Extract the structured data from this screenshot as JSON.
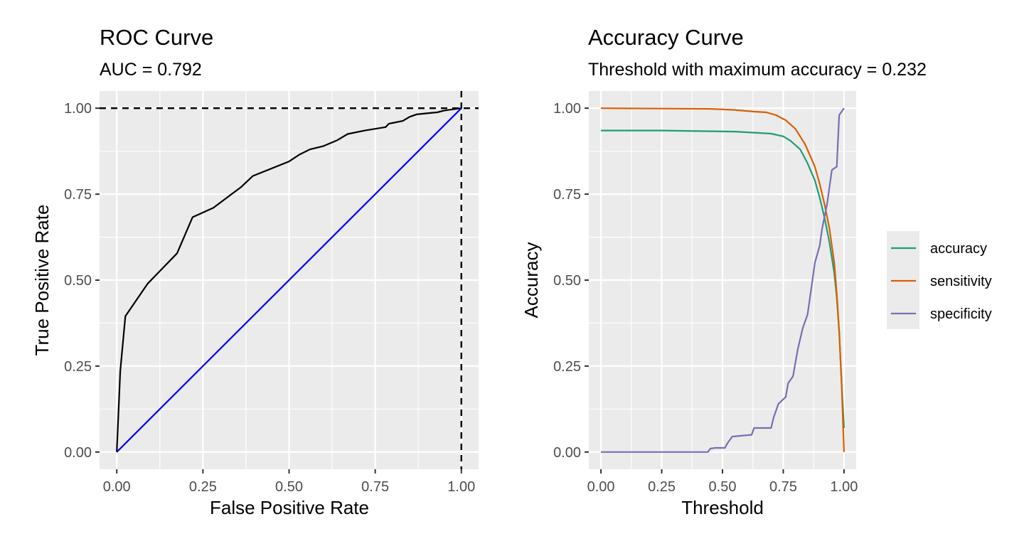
{
  "chart_data": [
    {
      "type": "line",
      "title": "ROC Curve",
      "subtitle": "AUC = 0.792",
      "xlabel": "False Positive Rate",
      "ylabel": "True Positive Rate",
      "xlim": [
        -0.05,
        1.05
      ],
      "ylim": [
        -0.05,
        1.05
      ],
      "xticks": [
        "0.00",
        "0.25",
        "0.50",
        "0.75",
        "1.00"
      ],
      "yticks": [
        "0.00",
        "0.25",
        "0.50",
        "0.75",
        "1.00"
      ],
      "grid": true,
      "series": [
        {
          "color": "#000000",
          "x": [
            0.0,
            0.01,
            0.025,
            0.09,
            0.175,
            0.22,
            0.28,
            0.36,
            0.395,
            0.5,
            0.53,
            0.56,
            0.6,
            0.64,
            0.67,
            0.72,
            0.78,
            0.79,
            0.8,
            0.83,
            0.85,
            0.87,
            0.9,
            0.93,
            0.95,
            0.97,
            1.0
          ],
          "y": [
            0.0,
            0.235,
            0.395,
            0.49,
            0.578,
            0.683,
            0.71,
            0.77,
            0.803,
            0.845,
            0.865,
            0.88,
            0.89,
            0.907,
            0.925,
            0.935,
            0.945,
            0.955,
            0.957,
            0.963,
            0.975,
            0.982,
            0.985,
            0.988,
            0.993,
            0.996,
            1.0
          ]
        },
        {
          "color": "#0000ff",
          "x": [
            0.0,
            1.0
          ],
          "y": [
            0.0,
            1.0
          ]
        }
      ],
      "reference_lines": [
        {
          "orientation": "horizontal",
          "value": 1.0,
          "style": "dashed",
          "color": "#000000"
        },
        {
          "orientation": "vertical",
          "value": 1.0,
          "style": "dashed",
          "color": "#000000"
        }
      ]
    },
    {
      "type": "line",
      "title": "Accuracy Curve",
      "subtitle": "Threshold with maximum accuracy = 0.232",
      "xlabel": "Threshold",
      "ylabel": "Accuracy",
      "xlim": [
        -0.05,
        1.05
      ],
      "ylim": [
        -0.05,
        1.05
      ],
      "xticks": [
        "0.00",
        "0.25",
        "0.50",
        "0.75",
        "1.00"
      ],
      "yticks": [
        "0.00",
        "0.25",
        "0.50",
        "0.75",
        "1.00"
      ],
      "grid": true,
      "legend_position": "right",
      "series": [
        {
          "name": "accuracy",
          "color": "#1b9e77",
          "x": [
            0.0,
            0.25,
            0.45,
            0.55,
            0.65,
            0.7,
            0.75,
            0.78,
            0.82,
            0.85,
            0.88,
            0.9,
            0.92,
            0.94,
            0.96,
            0.97,
            0.98,
            0.99,
            1.0
          ],
          "y": [
            0.935,
            0.935,
            0.933,
            0.932,
            0.928,
            0.926,
            0.918,
            0.905,
            0.88,
            0.84,
            0.79,
            0.74,
            0.68,
            0.61,
            0.52,
            0.45,
            0.35,
            0.2,
            0.07
          ]
        },
        {
          "name": "sensitivity",
          "color": "#d95f02",
          "x": [
            0.0,
            0.25,
            0.45,
            0.55,
            0.63,
            0.68,
            0.72,
            0.76,
            0.8,
            0.84,
            0.88,
            0.9,
            0.92,
            0.94,
            0.96,
            0.97,
            0.98,
            0.99,
            1.0
          ],
          "y": [
            1.0,
            0.999,
            0.998,
            0.995,
            0.99,
            0.988,
            0.98,
            0.965,
            0.94,
            0.895,
            0.83,
            0.78,
            0.72,
            0.65,
            0.55,
            0.46,
            0.35,
            0.2,
            0.0
          ]
        },
        {
          "name": "specificity",
          "color": "#7570b3",
          "x": [
            0.0,
            0.44,
            0.45,
            0.47,
            0.51,
            0.52,
            0.54,
            0.57,
            0.62,
            0.63,
            0.7,
            0.71,
            0.73,
            0.76,
            0.77,
            0.79,
            0.81,
            0.83,
            0.85,
            0.86,
            0.88,
            0.9,
            0.91,
            0.93,
            0.95,
            0.97,
            0.98,
            1.0
          ],
          "y": [
            0.0,
            0.0,
            0.01,
            0.012,
            0.012,
            0.025,
            0.045,
            0.047,
            0.05,
            0.07,
            0.07,
            0.1,
            0.14,
            0.16,
            0.2,
            0.22,
            0.3,
            0.36,
            0.4,
            0.45,
            0.55,
            0.6,
            0.65,
            0.72,
            0.82,
            0.83,
            0.98,
            1.0
          ]
        }
      ]
    }
  ]
}
